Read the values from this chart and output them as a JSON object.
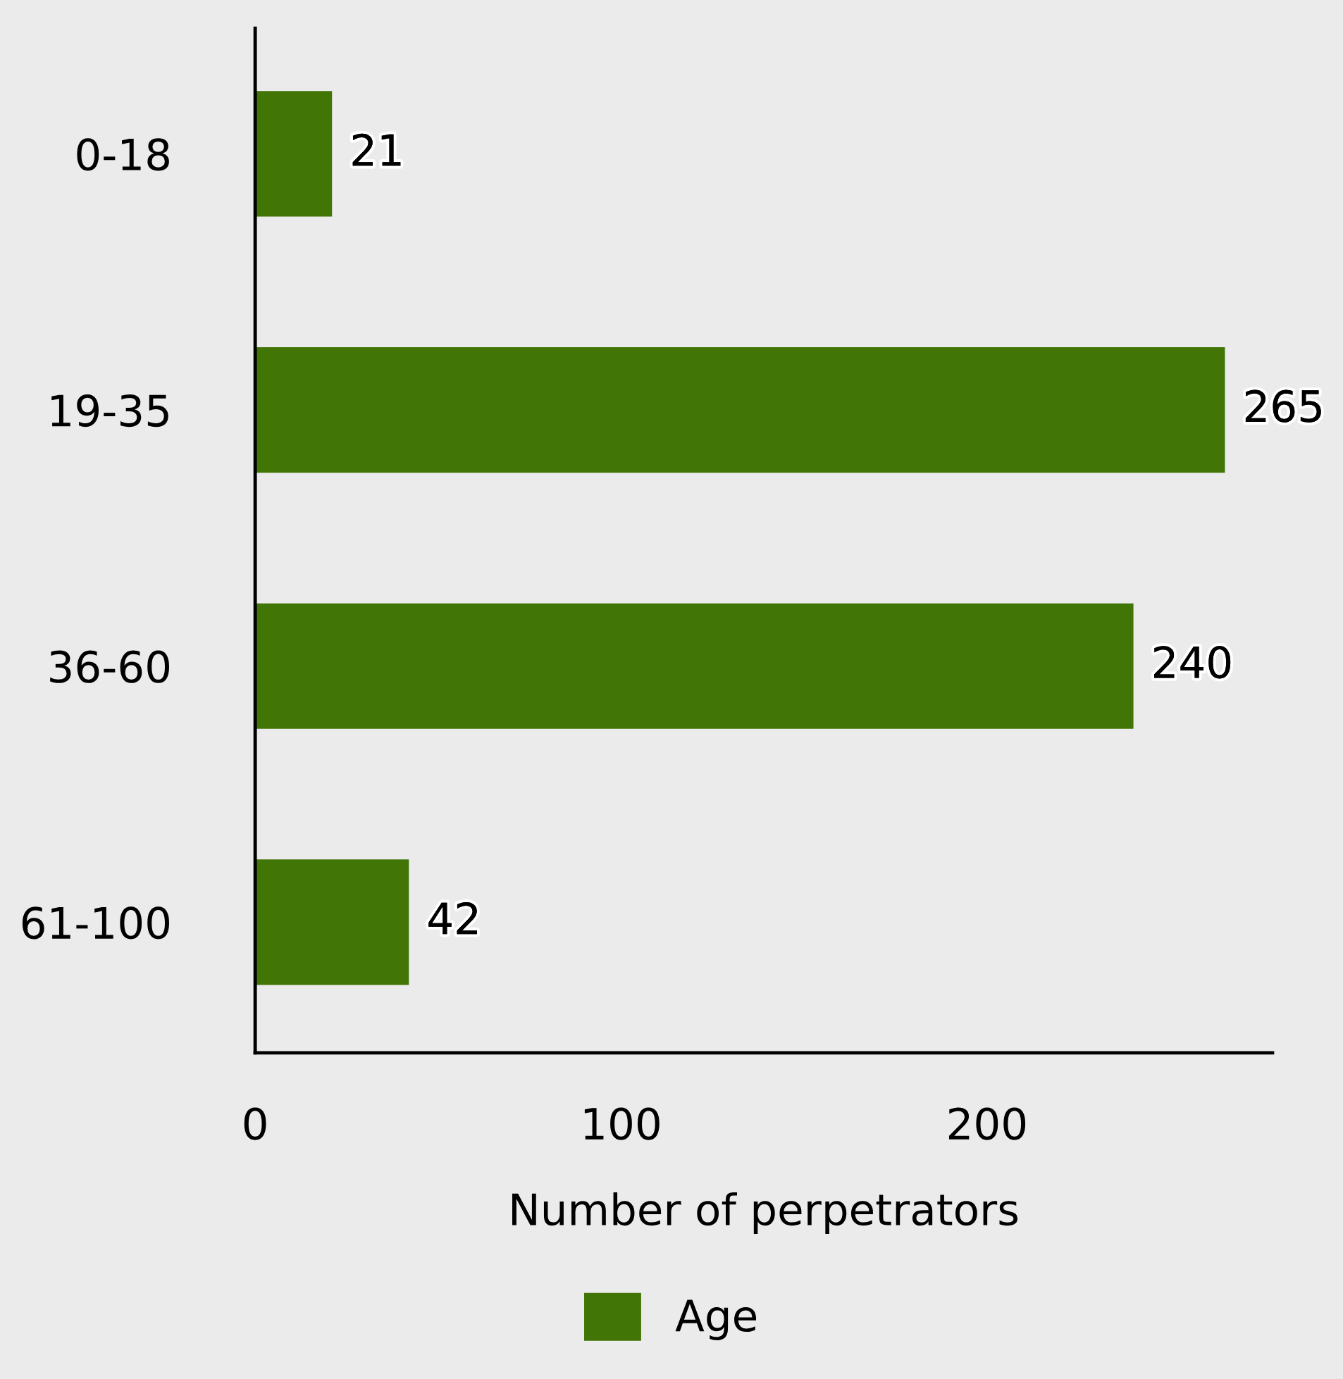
{
  "chart_data": {
    "type": "bar",
    "orientation": "horizontal",
    "xlabel": "Number of perpetrators",
    "categories": [
      "0-18",
      "19-35",
      "36-60",
      "61-100"
    ],
    "series": [
      {
        "name": "Age",
        "color": "#417505",
        "values": [
          21,
          265,
          240,
          42
        ]
      }
    ],
    "xlim": [
      0,
      278
    ],
    "xticks": [
      0,
      100,
      200
    ],
    "data_labels": true,
    "grid": false,
    "legend": "bottom"
  }
}
